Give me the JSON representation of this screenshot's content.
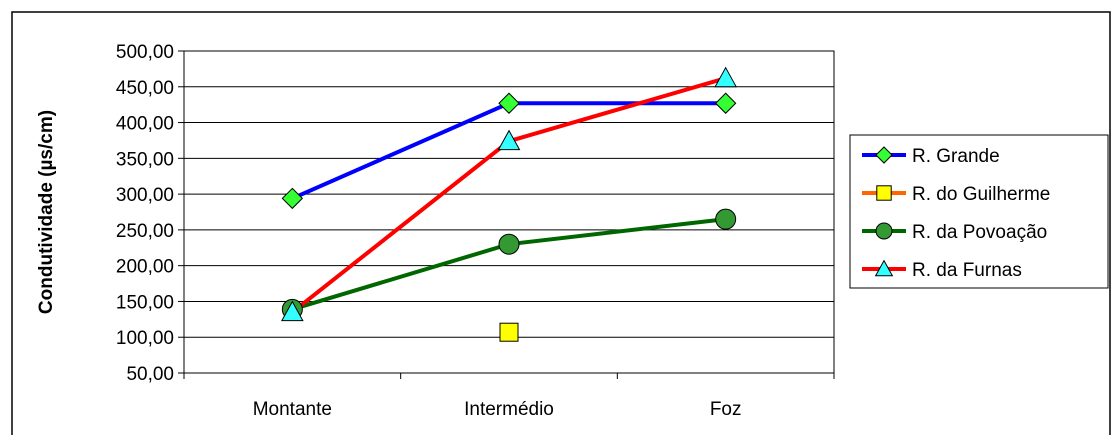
{
  "chart_data": {
    "type": "line",
    "title": "",
    "xlabel": "",
    "ylabel": "Condutividade (µs/cm)",
    "categories": [
      "Montante",
      "Intermédio",
      "Foz"
    ],
    "ylim": [
      50,
      500
    ],
    "yticks": [
      "50,00",
      "100,00",
      "150,00",
      "200,00",
      "250,00",
      "300,00",
      "350,00",
      "400,00",
      "450,00",
      "500,00"
    ],
    "grid": true,
    "legend_position": "right",
    "series": [
      {
        "name": "R. Grande",
        "values": [
          294,
          427,
          427
        ],
        "color": "#0000ff",
        "marker": "diamond",
        "marker_color": "#33ff33"
      },
      {
        "name": "R. do Guilherme",
        "values": [
          null,
          107,
          null
        ],
        "color": "#ff6600",
        "marker": "square",
        "marker_color": "#ffff00"
      },
      {
        "name": "R. da Povoação",
        "values": [
          139,
          230,
          265
        ],
        "color": "#006600",
        "marker": "circle",
        "marker_color": "#339933"
      },
      {
        "name": "R. da Furnas",
        "values": [
          135,
          374,
          462
        ],
        "color": "#ff0000",
        "marker": "triangle",
        "marker_color": "#33ffff"
      }
    ]
  }
}
